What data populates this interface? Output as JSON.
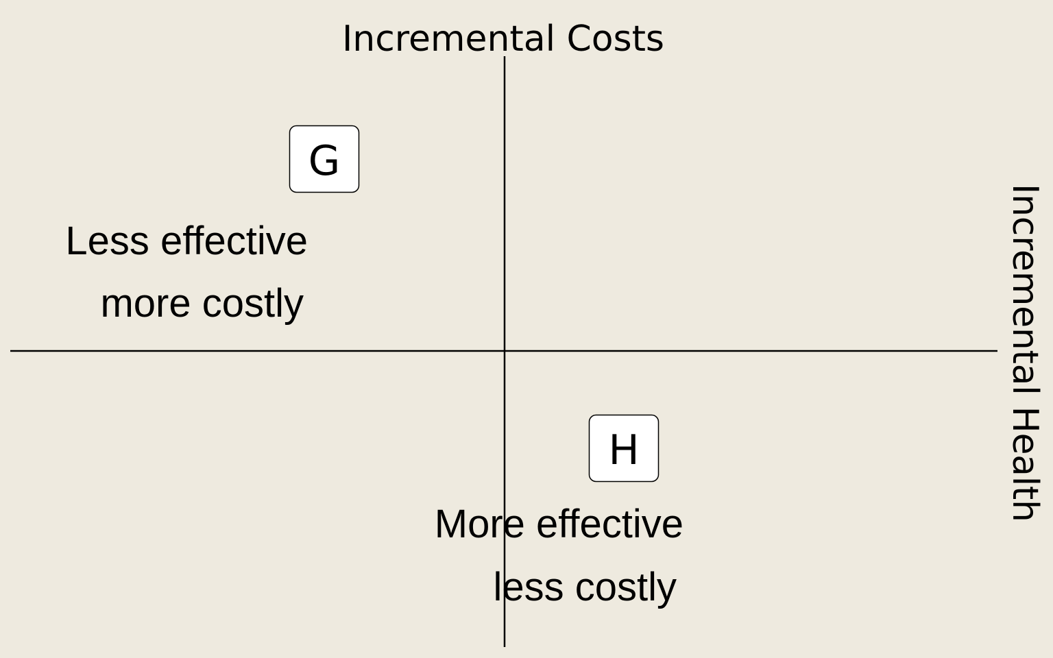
{
  "axes": {
    "y_label": "Incremental Costs",
    "x_label": "Incremental Health"
  },
  "nodes": [
    {
      "label": "G"
    },
    {
      "label": "H"
    }
  ],
  "quadrant_labels": [
    {
      "lines": [
        "Less effective",
        "more costly"
      ]
    },
    {
      "lines": [
        "More effective",
        "less costly"
      ]
    }
  ]
}
